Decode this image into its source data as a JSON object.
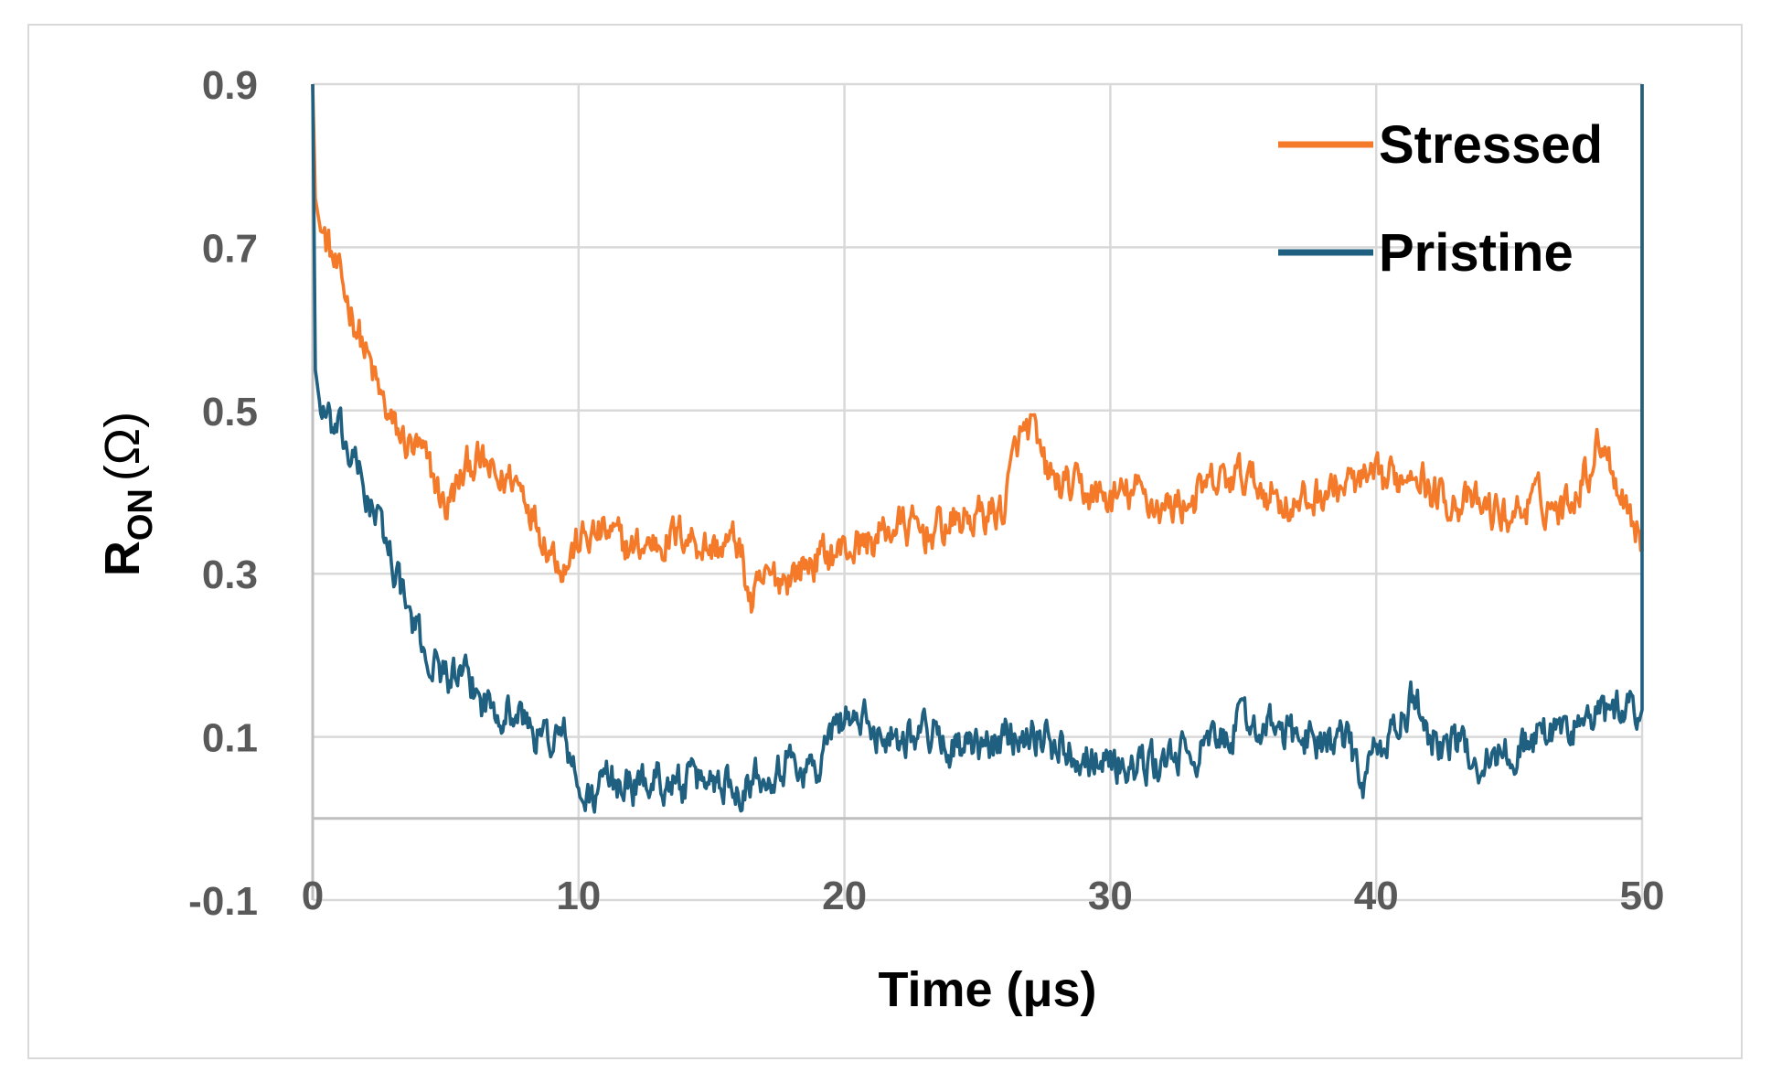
{
  "chart_data": {
    "type": "line",
    "xlabel": "Time (μs)",
    "ylabel": {
      "main": "R",
      "subscript": "ON",
      "unit": "(Ω)"
    },
    "xlim": [
      0,
      50
    ],
    "ylim": [
      -0.1,
      0.9
    ],
    "x_ticks": [
      "0",
      "10",
      "20",
      "30",
      "40",
      "50"
    ],
    "y_ticks": [
      "0.9",
      "0.7",
      "0.5",
      "0.3",
      "0.1",
      "-0.1"
    ],
    "grid": true,
    "legend_position": "top-right",
    "series": [
      {
        "name": "Stressed",
        "color": "#F47A2A",
        "x": [
          0,
          0.1,
          0.3,
          0.6,
          1,
          1.5,
          2,
          2.5,
          3,
          3.5,
          4,
          4.5,
          5,
          5.5,
          6,
          6.5,
          7,
          7.5,
          8,
          8.5,
          9,
          9.5,
          10,
          11,
          12,
          13,
          14,
          15,
          16,
          16.5,
          17,
          18,
          19,
          20,
          21,
          22,
          23,
          24,
          25,
          26,
          26.5,
          27,
          27.5,
          28,
          29,
          30,
          31,
          32,
          33,
          34,
          35,
          36,
          37,
          38,
          39,
          40,
          41,
          41.5,
          42,
          43,
          44,
          45,
          46,
          47,
          48,
          48.5,
          49,
          49.5,
          50
        ],
        "y": [
          0.9,
          0.76,
          0.72,
          0.7,
          0.66,
          0.62,
          0.57,
          0.52,
          0.48,
          0.46,
          0.45,
          0.42,
          0.38,
          0.41,
          0.44,
          0.43,
          0.41,
          0.42,
          0.4,
          0.36,
          0.33,
          0.31,
          0.34,
          0.35,
          0.33,
          0.34,
          0.35,
          0.33,
          0.34,
          0.26,
          0.29,
          0.3,
          0.32,
          0.33,
          0.34,
          0.36,
          0.35,
          0.36,
          0.37,
          0.38,
          0.46,
          0.48,
          0.43,
          0.41,
          0.4,
          0.39,
          0.4,
          0.38,
          0.39,
          0.41,
          0.42,
          0.4,
          0.38,
          0.4,
          0.41,
          0.41,
          0.42,
          0.44,
          0.4,
          0.39,
          0.38,
          0.37,
          0.39,
          0.38,
          0.43,
          0.47,
          0.42,
          0.38,
          0.34
        ]
      },
      {
        "name": "Pristine",
        "color": "#1F5F7F",
        "x": [
          0,
          0.1,
          0.3,
          0.6,
          1,
          1.5,
          2,
          2.5,
          3,
          3.5,
          4,
          4.5,
          5,
          5.5,
          6,
          6.5,
          7,
          7.5,
          8,
          8.5,
          9,
          9.5,
          10,
          10.5,
          11,
          12,
          13,
          14,
          15,
          16,
          17,
          18,
          19,
          19.5,
          20,
          21,
          22,
          23,
          24,
          25,
          26,
          27,
          28,
          29,
          30,
          31,
          32,
          33,
          34,
          35,
          36,
          37,
          38,
          39,
          39.5,
          40,
          41,
          41.5,
          42,
          43,
          44,
          45,
          46,
          47,
          48,
          49,
          50
        ],
        "y": [
          0.9,
          0.55,
          0.5,
          0.48,
          0.47,
          0.44,
          0.4,
          0.36,
          0.32,
          0.26,
          0.22,
          0.19,
          0.18,
          0.17,
          0.16,
          0.14,
          0.14,
          0.13,
          0.12,
          0.1,
          0.1,
          0.1,
          0.03,
          0.02,
          0.05,
          0.04,
          0.05,
          0.04,
          0.05,
          0.04,
          0.06,
          0.07,
          0.06,
          0.1,
          0.13,
          0.11,
          0.1,
          0.11,
          0.09,
          0.08,
          0.1,
          0.11,
          0.09,
          0.08,
          0.07,
          0.06,
          0.07,
          0.08,
          0.09,
          0.12,
          0.11,
          0.1,
          0.1,
          0.09,
          0.04,
          0.08,
          0.12,
          0.15,
          0.1,
          0.09,
          0.07,
          0.08,
          0.1,
          0.11,
          0.12,
          0.13,
          0.14
        ]
      }
    ]
  }
}
